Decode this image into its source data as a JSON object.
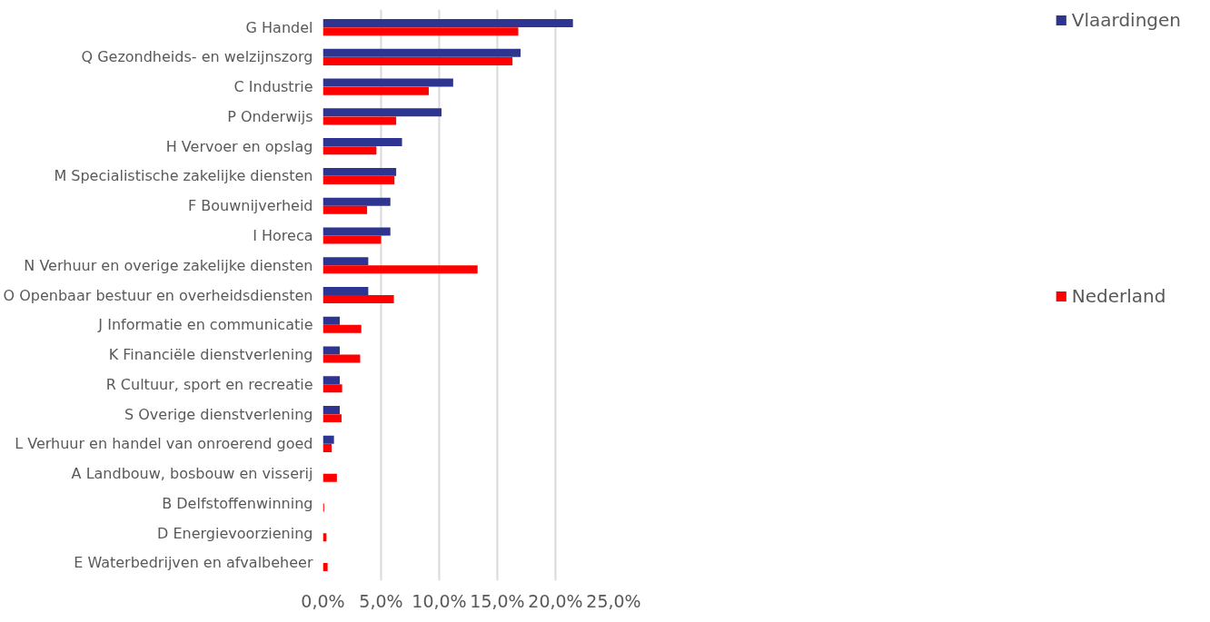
{
  "chart_data": {
    "type": "bar",
    "orientation": "horizontal",
    "categories": [
      "G Handel",
      "Q Gezondheids- en welzijnszorg",
      "C Industrie",
      "P Onderwijs",
      "H Vervoer en opslag",
      "M Specialistische zakelijke diensten",
      "F Bouwnijverheid",
      "I Horeca",
      "N Verhuur en overige zakelijke diensten",
      "O Openbaar bestuur en overheidsdiensten",
      "J Informatie en communicatie",
      "K Financiële dienstverlening",
      "R Cultuur, sport en recreatie",
      "S Overige dienstverlening",
      "L Verhuur en handel van onroerend goed",
      "A Landbouw, bosbouw en visserij",
      "B Delfstoffenwinning",
      "D Energievoorziening",
      "E Waterbedrijven en afvalbeheer"
    ],
    "series": [
      {
        "name": "Vlaardingen",
        "color": "#2e3590",
        "values": [
          21.5,
          17.0,
          11.2,
          10.2,
          6.8,
          6.3,
          5.8,
          5.8,
          3.9,
          3.9,
          1.45,
          1.45,
          1.45,
          1.45,
          0.95,
          0,
          0,
          0,
          0
        ]
      },
      {
        "name": "Nederland",
        "color": "#ff0000",
        "values": [
          16.8,
          16.3,
          9.1,
          6.3,
          4.6,
          6.15,
          3.8,
          5.0,
          13.3,
          6.1,
          3.3,
          3.2,
          1.65,
          1.6,
          0.75,
          1.2,
          0.1,
          0.3,
          0.4
        ]
      }
    ],
    "xlim": [
      0,
      25
    ],
    "xticks": [
      {
        "value": 0,
        "label": "0,0%"
      },
      {
        "value": 5,
        "label": "5,0%"
      },
      {
        "value": 10,
        "label": "10,0%"
      },
      {
        "value": 15,
        "label": "15,0%"
      },
      {
        "value": 20,
        "label": "20,0%"
      },
      {
        "value": 25,
        "label": "25,0%"
      }
    ],
    "grid": "x",
    "legend": "right"
  }
}
